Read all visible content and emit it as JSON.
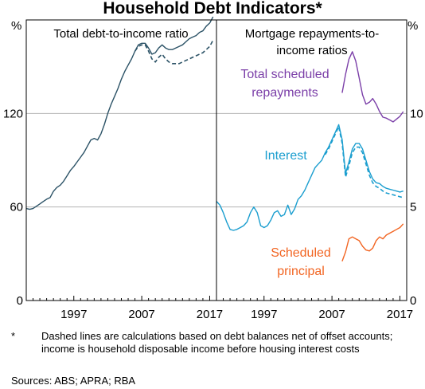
{
  "chart_data": {
    "type": "line",
    "title": "Household Debt Indicators*",
    "x_tick_labels": [
      "1997",
      "2007",
      "2017"
    ],
    "panels": [
      {
        "title": "Total debt-to-income ratio",
        "y_unit": "%",
        "ylim": [
          0,
          180
        ],
        "y_ticks": [
          0,
          60,
          120
        ],
        "x_range": [
          1990,
          2018
        ],
        "series": [
          {
            "label": "",
            "style": "solid",
            "color": "#2b5266",
            "x": [
              1990.0,
              1990.5,
              1991.0,
              1991.5,
              1992.0,
              1992.5,
              1993.0,
              1993.5,
              1994.0,
              1994.5,
              1995.0,
              1995.5,
              1996.0,
              1996.5,
              1997.0,
              1997.5,
              1998.0,
              1998.5,
              1999.0,
              1999.5,
              2000.0,
              2000.5,
              2001.0,
              2001.5,
              2002.0,
              2002.5,
              2003.0,
              2003.5,
              2004.0,
              2004.5,
              2005.0,
              2005.5,
              2006.0,
              2006.5,
              2007.0,
              2007.5,
              2008.0,
              2008.5,
              2009.0,
              2009.5,
              2010.0,
              2010.5,
              2011.0,
              2011.5,
              2012.0,
              2012.5,
              2013.0,
              2013.5,
              2014.0,
              2014.5,
              2015.0,
              2015.5,
              2016.0,
              2016.5,
              2017.0,
              2017.5
            ],
            "y": [
              59,
              58.5,
              59,
              60.5,
              62,
              63.5,
              65,
              66,
              70,
              72.5,
              74,
              76.5,
              80,
              83.5,
              86,
              89,
              92,
              95,
              99,
              103,
              104,
              103,
              107,
              113,
              120,
              126,
              131,
              136,
              142,
              147,
              151,
              155,
              160,
              164,
              165,
              165,
              162,
              158,
              159,
              162,
              164,
              162,
              161,
              161,
              162,
              163,
              164,
              166,
              168,
              169,
              170,
              172,
              173,
              176,
              178,
              182
            ]
          },
          {
            "label": "",
            "style": "dashed",
            "color": "#2b5266",
            "x": [
              2006.0,
              2006.5,
              2007.0,
              2007.5,
              2008.0,
              2008.5,
              2009.0,
              2009.5,
              2010.0,
              2010.5,
              2011.0,
              2011.5,
              2012.0,
              2012.5,
              2013.0,
              2013.5,
              2014.0,
              2014.5,
              2015.0,
              2015.5,
              2016.0,
              2016.5,
              2017.0,
              2017.5
            ],
            "y": [
              160,
              163,
              164,
              164,
              160,
              155,
              153,
              156,
              158,
              155,
              153,
              152,
              152,
              152,
              153,
              154,
              155,
              156,
              157,
              158,
              159,
              161,
              163,
              167
            ]
          }
        ]
      },
      {
        "title": "Mortgage repayments-to-income ratios",
        "y_unit": "%",
        "ylim": [
          0,
          15
        ],
        "y_ticks": [
          0,
          5,
          10
        ],
        "x_range": [
          1990,
          2018
        ],
        "series": [
          {
            "label": "Total scheduled repayments",
            "style": "solid",
            "color": "#7b3fa8",
            "x": [
              2008.5,
              2009.0,
              2009.5,
              2010.0,
              2010.5,
              2011.0,
              2011.5,
              2012.0,
              2012.5,
              2013.0,
              2013.5,
              2014.0,
              2014.5,
              2015.0,
              2015.5,
              2016.0,
              2016.5,
              2017.0,
              2017.5
            ],
            "y": [
              11.1,
              12.1,
              12.9,
              13.3,
              12.8,
              11.9,
              11.0,
              10.5,
              10.6,
              10.8,
              10.5,
              10.1,
              9.8,
              9.75,
              9.65,
              9.55,
              9.7,
              9.85,
              10.1
            ]
          },
          {
            "label": "Interest",
            "style": "solid",
            "color": "#1b9ecf",
            "x": [
              1990.0,
              1990.5,
              1991.0,
              1991.5,
              1992.0,
              1992.5,
              1993.0,
              1993.5,
              1994.0,
              1994.5,
              1995.0,
              1995.5,
              1996.0,
              1996.5,
              1997.0,
              1997.5,
              1998.0,
              1998.5,
              1999.0,
              1999.5,
              2000.0,
              2000.5,
              2001.0,
              2001.5,
              2002.0,
              2002.5,
              2003.0,
              2003.5,
              2004.0,
              2004.5,
              2005.0,
              2005.5,
              2006.0,
              2006.5,
              2007.0,
              2007.5,
              2008.0,
              2008.5,
              2009.0,
              2009.5,
              2010.0,
              2010.5,
              2011.0,
              2011.5,
              2012.0,
              2012.5,
              2013.0,
              2013.5,
              2014.0,
              2014.5,
              2015.0,
              2015.5,
              2016.0,
              2016.5,
              2017.0,
              2017.5
            ],
            "y": [
              5.3,
              5.1,
              4.7,
              4.2,
              3.8,
              3.75,
              3.8,
              3.9,
              4.0,
              4.2,
              4.7,
              5.0,
              4.7,
              4.0,
              3.9,
              4.0,
              4.3,
              4.7,
              4.8,
              4.5,
              4.6,
              5.1,
              4.6,
              4.9,
              5.4,
              5.6,
              5.9,
              6.3,
              6.7,
              7.1,
              7.3,
              7.5,
              7.9,
              8.2,
              8.6,
              9.0,
              9.4,
              8.6,
              6.8,
              7.4,
              8.1,
              8.4,
              8.4,
              8.1,
              7.5,
              6.9,
              6.5,
              6.3,
              6.25,
              6.1,
              6.0,
              5.95,
              5.9,
              5.85,
              5.8,
              5.85
            ]
          },
          {
            "label": "",
            "style": "dashed",
            "color": "#1b9ecf",
            "x": [
              2006.0,
              2006.5,
              2007.0,
              2007.5,
              2008.0,
              2008.5,
              2009.0,
              2009.5,
              2010.0,
              2010.5,
              2011.0,
              2011.5,
              2012.0,
              2012.5,
              2013.0,
              2013.5,
              2014.0,
              2014.5,
              2015.0,
              2015.5,
              2016.0,
              2016.5,
              2017.0,
              2017.5
            ],
            "y": [
              7.8,
              8.1,
              8.5,
              8.9,
              9.3,
              8.4,
              6.6,
              7.2,
              7.9,
              8.2,
              8.2,
              7.9,
              7.3,
              6.7,
              6.3,
              6.1,
              6.0,
              5.85,
              5.75,
              5.7,
              5.65,
              5.6,
              5.55,
              5.5
            ]
          },
          {
            "label": "Scheduled principal",
            "style": "solid",
            "color": "#f26522",
            "x": [
              2008.5,
              2009.0,
              2009.5,
              2010.0,
              2010.5,
              2011.0,
              2011.5,
              2012.0,
              2012.5,
              2013.0,
              2013.5,
              2014.0,
              2014.5,
              2015.0,
              2015.5,
              2016.0,
              2016.5,
              2017.0,
              2017.5
            ],
            "y": [
              2.1,
              2.6,
              3.3,
              3.4,
              3.3,
              3.2,
              2.9,
              2.7,
              2.65,
              2.8,
              3.2,
              3.4,
              3.3,
              3.5,
              3.6,
              3.7,
              3.8,
              3.9,
              4.1
            ]
          }
        ]
      }
    ]
  },
  "labels": {
    "unit_left": "%",
    "unit_right": "%",
    "footnote_mark": "*",
    "footnote_text": "Dashed lines are calculations based on debt balances net of offset accounts; income is household disposable income before housing interest costs",
    "sources": "Sources:   ABS; APRA; RBA"
  }
}
